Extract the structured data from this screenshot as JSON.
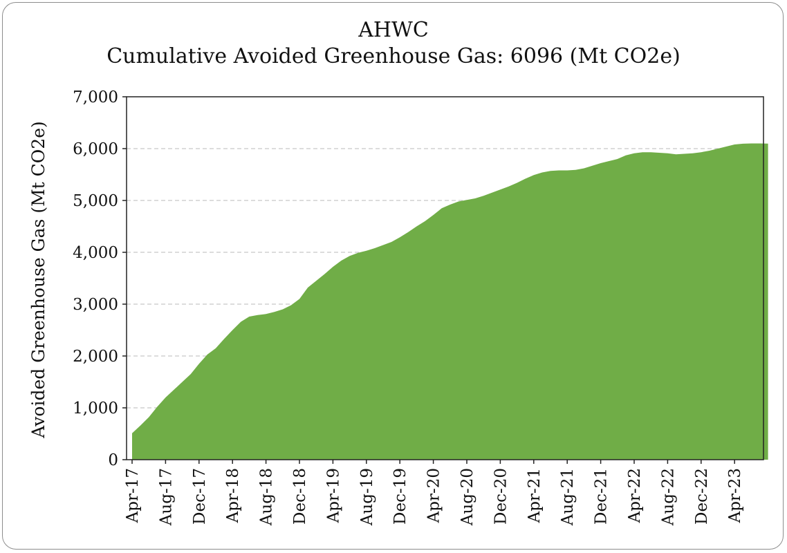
{
  "chart_data": {
    "type": "area",
    "title": "AHWC",
    "subtitle": "Cumulative Avoided Greenhouse Gas: 6096 (Mt CO2e)",
    "ylabel": "Avoided Greenhouse Gas (Mt CO2e)",
    "xlabel": "",
    "ylim": [
      0,
      7000
    ],
    "yticks": [
      0,
      1000,
      2000,
      3000,
      4000,
      5000,
      6000,
      7000
    ],
    "ytick_labels": [
      "0",
      "1,000",
      "2,000",
      "3,000",
      "4,000",
      "5,000",
      "6,000",
      "7,000"
    ],
    "xtick_labels": [
      "Apr-17",
      "Aug-17",
      "Dec-17",
      "Apr-18",
      "Aug-18",
      "Dec-18",
      "Apr-19",
      "Aug-19",
      "Dec-19",
      "Apr-20",
      "Aug-20",
      "Dec-20",
      "Apr-21",
      "Aug-21",
      "Dec-21",
      "Apr-22",
      "Aug-22",
      "Dec-22",
      "Apr-23"
    ],
    "grid": "horizontal-dashed",
    "color": "#70ad47",
    "x": [
      "Apr-17",
      "May-17",
      "Jun-17",
      "Jul-17",
      "Aug-17",
      "Sep-17",
      "Oct-17",
      "Nov-17",
      "Dec-17",
      "Jan-18",
      "Feb-18",
      "Mar-18",
      "Apr-18",
      "May-18",
      "Jun-18",
      "Jul-18",
      "Aug-18",
      "Sep-18",
      "Oct-18",
      "Nov-18",
      "Dec-18",
      "Jan-19",
      "Feb-19",
      "Mar-19",
      "Apr-19",
      "May-19",
      "Jun-19",
      "Jul-19",
      "Aug-19",
      "Sep-19",
      "Oct-19",
      "Nov-19",
      "Dec-19",
      "Jan-20",
      "Feb-20",
      "Mar-20",
      "Apr-20",
      "May-20",
      "Jun-20",
      "Jul-20",
      "Aug-20",
      "Sep-20",
      "Oct-20",
      "Nov-20",
      "Dec-20",
      "Jan-21",
      "Feb-21",
      "Mar-21",
      "Apr-21",
      "May-21",
      "Jun-21",
      "Jul-21",
      "Aug-21",
      "Sep-21",
      "Oct-21",
      "Nov-21",
      "Dec-21",
      "Jan-22",
      "Feb-22",
      "Mar-22",
      "Apr-22",
      "May-22",
      "Jun-22",
      "Jul-22",
      "Aug-22",
      "Sep-22",
      "Oct-22",
      "Nov-22",
      "Dec-22",
      "Jan-23",
      "Feb-23",
      "Mar-23",
      "Apr-23",
      "May-23",
      "Jun-23",
      "Jul-23",
      "Aug-23"
    ],
    "values": [
      510,
      660,
      820,
      1020,
      1200,
      1350,
      1500,
      1650,
      1850,
      2030,
      2150,
      2330,
      2500,
      2660,
      2760,
      2790,
      2810,
      2850,
      2900,
      2980,
      3100,
      3320,
      3450,
      3580,
      3720,
      3840,
      3930,
      3990,
      4030,
      4080,
      4140,
      4200,
      4290,
      4390,
      4500,
      4600,
      4720,
      4850,
      4920,
      4980,
      5010,
      5040,
      5090,
      5150,
      5210,
      5270,
      5340,
      5420,
      5490,
      5540,
      5570,
      5580,
      5580,
      5590,
      5620,
      5670,
      5720,
      5760,
      5800,
      5870,
      5910,
      5930,
      5930,
      5920,
      5910,
      5890,
      5900,
      5910,
      5930,
      5960,
      6000,
      6040,
      6080,
      6095,
      6100,
      6100,
      6096
    ]
  }
}
